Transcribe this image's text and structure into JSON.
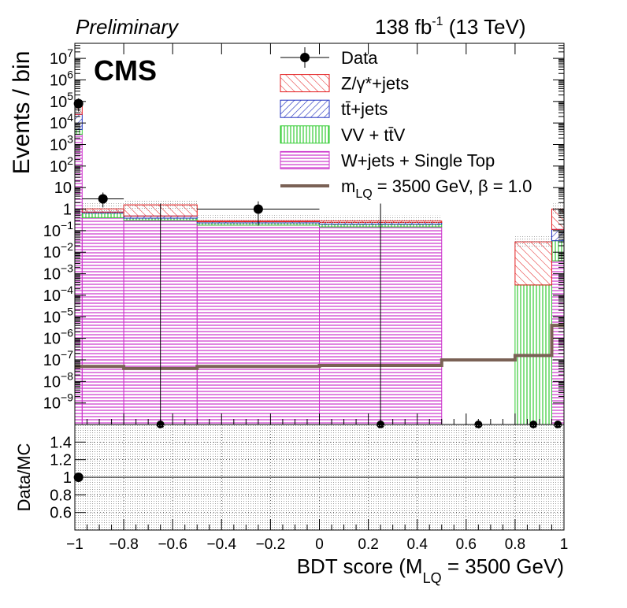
{
  "header": {
    "preliminary": "Preliminary",
    "lumi_value": "138 fb",
    "lumi_exp": "-1",
    "lumi_energy": " (13 TeV)",
    "experiment": "CMS"
  },
  "axes": {
    "ylabel_top": "Events / bin",
    "ylabel_ratio": "Data/MC",
    "xlabel_main": "BDT score (M",
    "xlabel_sub": "LQ",
    "xlabel_tail": " = 3500 GeV)"
  },
  "legend": [
    {
      "key": "data",
      "label": "Data",
      "style": "marker"
    },
    {
      "key": "zjets",
      "label": "Z/γ*+jets",
      "style": "hatch",
      "color": "#e31a1c"
    },
    {
      "key": "ttbar",
      "label": "tt̄+jets",
      "style": "hatch",
      "color": "#1f2fbf"
    },
    {
      "key": "vv",
      "label": "VV + tt̄V",
      "style": "vhatch",
      "color": "#33cc33"
    },
    {
      "key": "wjets",
      "label": "W+jets + Single Top",
      "style": "hhatch",
      "color": "#cc33cc"
    },
    {
      "key": "signal",
      "label": "m",
      "label_sub": "LQ",
      "label_tail": " = 3500 GeV, β = 1.0",
      "style": "line",
      "color": "#7a6155"
    }
  ],
  "chart_data": {
    "type": "bar",
    "subtype": "stacked histogram with data points and ratio panel",
    "x_edges": [
      -1.0,
      -0.97,
      -0.8,
      -0.5,
      0.0,
      0.5,
      0.8,
      0.95,
      1.0
    ],
    "xlim": [
      -1,
      1
    ],
    "ylim": [
      1e-10,
      50000000.0
    ],
    "yscale": "log",
    "ratio_ylim": [
      0.4,
      1.6
    ],
    "x_ticks": [
      -1,
      -0.8,
      -0.6,
      -0.4,
      -0.2,
      0,
      0.2,
      0.4,
      0.6,
      0.8,
      1
    ],
    "x_tick_labels": [
      "−1",
      "−0.8",
      "−0.6",
      "−0.4",
      "−0.2",
      "0",
      "0.2",
      "0.4",
      "0.6",
      "0.8",
      "1"
    ],
    "y_ticks": [
      1e-09,
      1e-08,
      1e-07,
      1e-06,
      1e-05,
      0.0001,
      0.001,
      0.01,
      0.1,
      1,
      10,
      100,
      1000,
      10000,
      100000,
      1000000,
      10000000
    ],
    "y_tick_labels": [
      {
        "base": "10",
        "exp": "−9"
      },
      {
        "base": "10",
        "exp": "−8"
      },
      {
        "base": "10",
        "exp": "−7"
      },
      {
        "base": "10",
        "exp": "−6"
      },
      {
        "base": "10",
        "exp": "−5"
      },
      {
        "base": "10",
        "exp": "−4"
      },
      {
        "base": "10",
        "exp": "−3"
      },
      {
        "base": "10",
        "exp": "−2"
      },
      {
        "base": "10",
        "exp": "−1"
      },
      {
        "base": "1",
        "exp": ""
      },
      {
        "base": "10",
        "exp": ""
      },
      {
        "base": "10",
        "exp": "2"
      },
      {
        "base": "10",
        "exp": "3"
      },
      {
        "base": "10",
        "exp": "4"
      },
      {
        "base": "10",
        "exp": "5"
      },
      {
        "base": "10",
        "exp": "6"
      },
      {
        "base": "10",
        "exp": "7"
      }
    ],
    "ratio_ticks": [
      0.6,
      0.8,
      1.0,
      1.2,
      1.4
    ],
    "ratio_tick_labels": [
      "0.6",
      "0.8",
      "1",
      "1.2",
      "1.4"
    ],
    "stack_order": [
      "wjets",
      "vv",
      "ttbar",
      "zjets"
    ],
    "series": [
      {
        "name": "W+jets + Single Top",
        "key": "wjets",
        "values": [
          3000,
          0.4,
          0.3,
          0.18,
          0.15,
          0,
          0,
          0.004
        ]
      },
      {
        "name": "VV + tt̄V",
        "key": "vv",
        "values": [
          2000,
          0.25,
          0.08,
          0.05,
          0.05,
          0,
          0.0003,
          0.03
        ]
      },
      {
        "name": "tt̄+jets",
        "key": "ttbar",
        "values": [
          20000,
          0.08,
          0.1,
          0.03,
          0.04,
          0,
          0,
          0.08
        ]
      },
      {
        "name": "Z/γ*+jets",
        "key": "zjets",
        "values": [
          35000,
          0.3,
          1.1,
          0.03,
          0.04,
          0,
          0.03,
          0.9
        ]
      }
    ],
    "signal": {
      "name": "m_LQ = 3500 GeV, β = 1.0",
      "values": [
        5e-08,
        5e-08,
        4e-08,
        5e-08,
        5.5e-08,
        1e-07,
        1.6e-07,
        4e-06
      ]
    },
    "data_points": [
      {
        "x": -0.985,
        "y": 80000,
        "yerr_lo": 45000,
        "yerr_hi": 60000
      },
      {
        "x": -0.885,
        "y": 3,
        "yerr_lo": 1.8,
        "yerr_hi": 2.9
      },
      {
        "x": -0.65,
        "y": 0,
        "yerr_lo": 0,
        "yerr_hi": 1.8
      },
      {
        "x": -0.25,
        "y": 1,
        "yerr_lo": 0.83,
        "yerr_hi": 1.3
      },
      {
        "x": 0.25,
        "y": 0,
        "yerr_lo": 0,
        "yerr_hi": 1.8
      },
      {
        "x": 0.65,
        "y": 0,
        "yerr_lo": 0,
        "yerr_hi": 0
      },
      {
        "x": 0.875,
        "y": 0,
        "yerr_lo": 0,
        "yerr_hi": 0
      },
      {
        "x": 0.975,
        "y": 0,
        "yerr_lo": 0,
        "yerr_hi": 0
      }
    ],
    "ratio_points": [
      {
        "x": -0.985,
        "y": 1.0
      }
    ]
  }
}
